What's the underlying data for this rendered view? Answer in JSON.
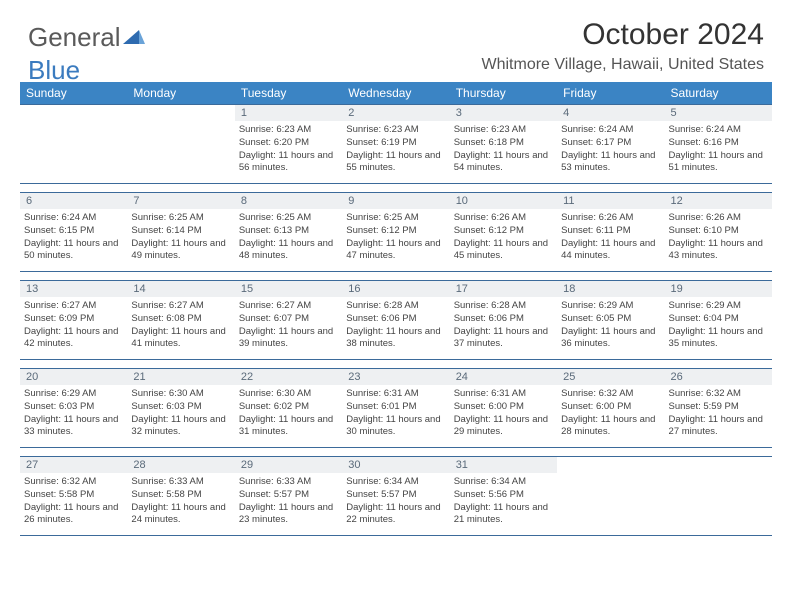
{
  "logo": {
    "text1": "General",
    "text2": "Blue"
  },
  "header": {
    "month_title": "October 2024",
    "location": "Whitmore Village, Hawaii, United States"
  },
  "colors": {
    "header_bg": "#3b84c4",
    "header_text": "#ffffff",
    "row_border": "#3b6a9a",
    "daynum_bg": "#eef0f2",
    "daynum_text": "#5a6a7a",
    "body_text": "#444444"
  },
  "days_of_week": [
    "Sunday",
    "Monday",
    "Tuesday",
    "Wednesday",
    "Thursday",
    "Friday",
    "Saturday"
  ],
  "weeks": [
    [
      null,
      null,
      {
        "n": "1",
        "sr": "6:23 AM",
        "ss": "6:20 PM",
        "dl": "11 hours and 56 minutes."
      },
      {
        "n": "2",
        "sr": "6:23 AM",
        "ss": "6:19 PM",
        "dl": "11 hours and 55 minutes."
      },
      {
        "n": "3",
        "sr": "6:23 AM",
        "ss": "6:18 PM",
        "dl": "11 hours and 54 minutes."
      },
      {
        "n": "4",
        "sr": "6:24 AM",
        "ss": "6:17 PM",
        "dl": "11 hours and 53 minutes."
      },
      {
        "n": "5",
        "sr": "6:24 AM",
        "ss": "6:16 PM",
        "dl": "11 hours and 51 minutes."
      }
    ],
    [
      {
        "n": "6",
        "sr": "6:24 AM",
        "ss": "6:15 PM",
        "dl": "11 hours and 50 minutes."
      },
      {
        "n": "7",
        "sr": "6:25 AM",
        "ss": "6:14 PM",
        "dl": "11 hours and 49 minutes."
      },
      {
        "n": "8",
        "sr": "6:25 AM",
        "ss": "6:13 PM",
        "dl": "11 hours and 48 minutes."
      },
      {
        "n": "9",
        "sr": "6:25 AM",
        "ss": "6:12 PM",
        "dl": "11 hours and 47 minutes."
      },
      {
        "n": "10",
        "sr": "6:26 AM",
        "ss": "6:12 PM",
        "dl": "11 hours and 45 minutes."
      },
      {
        "n": "11",
        "sr": "6:26 AM",
        "ss": "6:11 PM",
        "dl": "11 hours and 44 minutes."
      },
      {
        "n": "12",
        "sr": "6:26 AM",
        "ss": "6:10 PM",
        "dl": "11 hours and 43 minutes."
      }
    ],
    [
      {
        "n": "13",
        "sr": "6:27 AM",
        "ss": "6:09 PM",
        "dl": "11 hours and 42 minutes."
      },
      {
        "n": "14",
        "sr": "6:27 AM",
        "ss": "6:08 PM",
        "dl": "11 hours and 41 minutes."
      },
      {
        "n": "15",
        "sr": "6:27 AM",
        "ss": "6:07 PM",
        "dl": "11 hours and 39 minutes."
      },
      {
        "n": "16",
        "sr": "6:28 AM",
        "ss": "6:06 PM",
        "dl": "11 hours and 38 minutes."
      },
      {
        "n": "17",
        "sr": "6:28 AM",
        "ss": "6:06 PM",
        "dl": "11 hours and 37 minutes."
      },
      {
        "n": "18",
        "sr": "6:29 AM",
        "ss": "6:05 PM",
        "dl": "11 hours and 36 minutes."
      },
      {
        "n": "19",
        "sr": "6:29 AM",
        "ss": "6:04 PM",
        "dl": "11 hours and 35 minutes."
      }
    ],
    [
      {
        "n": "20",
        "sr": "6:29 AM",
        "ss": "6:03 PM",
        "dl": "11 hours and 33 minutes."
      },
      {
        "n": "21",
        "sr": "6:30 AM",
        "ss": "6:03 PM",
        "dl": "11 hours and 32 minutes."
      },
      {
        "n": "22",
        "sr": "6:30 AM",
        "ss": "6:02 PM",
        "dl": "11 hours and 31 minutes."
      },
      {
        "n": "23",
        "sr": "6:31 AM",
        "ss": "6:01 PM",
        "dl": "11 hours and 30 minutes."
      },
      {
        "n": "24",
        "sr": "6:31 AM",
        "ss": "6:00 PM",
        "dl": "11 hours and 29 minutes."
      },
      {
        "n": "25",
        "sr": "6:32 AM",
        "ss": "6:00 PM",
        "dl": "11 hours and 28 minutes."
      },
      {
        "n": "26",
        "sr": "6:32 AM",
        "ss": "5:59 PM",
        "dl": "11 hours and 27 minutes."
      }
    ],
    [
      {
        "n": "27",
        "sr": "6:32 AM",
        "ss": "5:58 PM",
        "dl": "11 hours and 26 minutes."
      },
      {
        "n": "28",
        "sr": "6:33 AM",
        "ss": "5:58 PM",
        "dl": "11 hours and 24 minutes."
      },
      {
        "n": "29",
        "sr": "6:33 AM",
        "ss": "5:57 PM",
        "dl": "11 hours and 23 minutes."
      },
      {
        "n": "30",
        "sr": "6:34 AM",
        "ss": "5:57 PM",
        "dl": "11 hours and 22 minutes."
      },
      {
        "n": "31",
        "sr": "6:34 AM",
        "ss": "5:56 PM",
        "dl": "11 hours and 21 minutes."
      },
      null,
      null
    ]
  ],
  "labels": {
    "sunrise": "Sunrise:",
    "sunset": "Sunset:",
    "daylight": "Daylight:"
  }
}
